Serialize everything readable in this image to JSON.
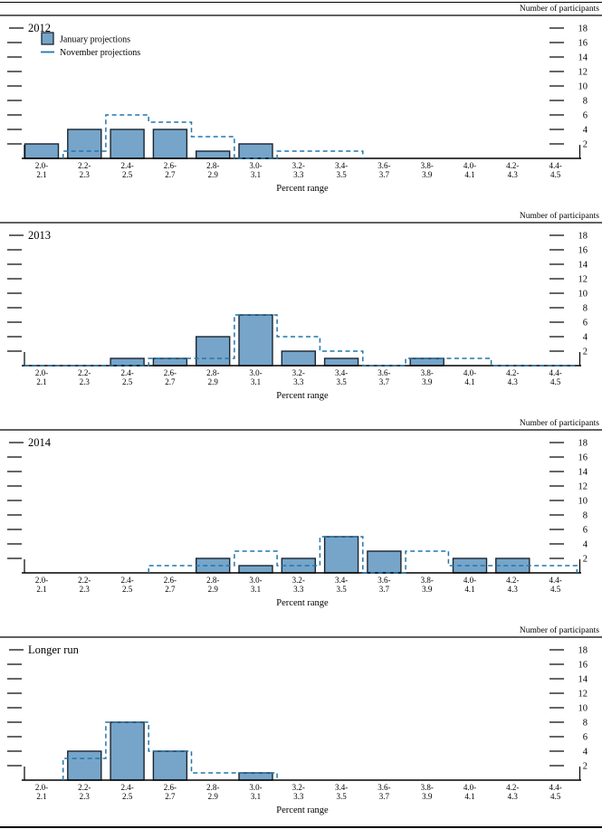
{
  "figure": {
    "y_axis_label": "Number of participants",
    "x_axis_label": "Percent range",
    "y_ticks": [
      2,
      4,
      6,
      8,
      10,
      12,
      14,
      16,
      18
    ],
    "legend": [
      {
        "label": "January projections",
        "style": "bar"
      },
      {
        "label": "November projections",
        "style": "dashed-line"
      }
    ],
    "colors": {
      "bar_fill": "#76a5c9",
      "bar_border": "#1b2430",
      "november_line": "#2176ad",
      "axis": "#000000"
    }
  },
  "chart_data": [
    {
      "type": "bar",
      "title": "2012",
      "show_legend": true,
      "categories": [
        "2.0-2.1",
        "2.2-2.3",
        "2.4-2.5",
        "2.6-2.7",
        "2.8-2.9",
        "3.0-3.1",
        "3.2-3.3",
        "3.4-3.5",
        "3.6-3.7",
        "3.8-3.9",
        "4.0-4.1",
        "4.2-4.3",
        "4.4-4.5"
      ],
      "xlabel": "Percent range",
      "ylabel": "Number of participants",
      "ylim": [
        0,
        19
      ],
      "series": [
        {
          "name": "January projections",
          "style": "bar",
          "values": [
            2,
            4,
            4,
            4,
            1,
            2,
            0,
            0,
            0,
            0,
            0,
            0,
            0
          ]
        },
        {
          "name": "November projections",
          "style": "dashed-step",
          "values": [
            null,
            1,
            6,
            5,
            3,
            0,
            1,
            1,
            null,
            null,
            null,
            null,
            null
          ]
        }
      ]
    },
    {
      "type": "bar",
      "title": "2013",
      "show_legend": false,
      "categories": [
        "2.0-2.1",
        "2.2-2.3",
        "2.4-2.5",
        "2.6-2.7",
        "2.8-2.9",
        "3.0-3.1",
        "3.2-3.3",
        "3.4-3.5",
        "3.6-3.7",
        "3.8-3.9",
        "4.0-4.1",
        "4.2-4.3",
        "4.4-4.5"
      ],
      "xlabel": "Percent range",
      "ylabel": "Number of participants",
      "ylim": [
        0,
        19
      ],
      "series": [
        {
          "name": "January projections",
          "style": "bar",
          "values": [
            0,
            0,
            1,
            1,
            4,
            7,
            2,
            1,
            0,
            1,
            0,
            0,
            0
          ]
        },
        {
          "name": "November projections",
          "style": "dashed-step",
          "values": [
            0,
            0,
            0,
            1,
            1,
            7,
            4,
            2,
            0,
            1,
            1,
            0,
            0
          ]
        }
      ]
    },
    {
      "type": "bar",
      "title": "2014",
      "show_legend": false,
      "categories": [
        "2.0-2.1",
        "2.2-2.3",
        "2.4-2.5",
        "2.6-2.7",
        "2.8-2.9",
        "3.0-3.1",
        "3.2-3.3",
        "3.4-3.5",
        "3.6-3.7",
        "3.8-3.9",
        "4.0-4.1",
        "4.2-4.3",
        "4.4-4.5"
      ],
      "xlabel": "Percent range",
      "ylabel": "Number of participants",
      "ylim": [
        0,
        19
      ],
      "series": [
        {
          "name": "January projections",
          "style": "bar",
          "values": [
            0,
            0,
            0,
            0,
            2,
            1,
            2,
            5,
            3,
            0,
            2,
            2,
            0
          ]
        },
        {
          "name": "November projections",
          "style": "dashed-step",
          "values": [
            null,
            null,
            null,
            1,
            1,
            3,
            1,
            5,
            0,
            3,
            1,
            1,
            1
          ]
        }
      ]
    },
    {
      "type": "bar",
      "title": "Longer run",
      "show_legend": false,
      "categories": [
        "2.0-2.1",
        "2.2-2.3",
        "2.4-2.5",
        "2.6-2.7",
        "2.8-2.9",
        "3.0-3.1",
        "3.2-3.3",
        "3.4-3.5",
        "3.6-3.7",
        "3.8-3.9",
        "4.0-4.1",
        "4.2-4.3",
        "4.4-4.5"
      ],
      "xlabel": "Percent range",
      "ylabel": "Number of participants",
      "ylim": [
        0,
        19
      ],
      "series": [
        {
          "name": "January projections",
          "style": "bar",
          "values": [
            0,
            4,
            8,
            4,
            0,
            1,
            0,
            0,
            0,
            0,
            0,
            0,
            0
          ]
        },
        {
          "name": "November projections",
          "style": "dashed-step",
          "values": [
            null,
            3,
            8,
            4,
            1,
            1,
            null,
            null,
            null,
            null,
            null,
            null,
            null
          ]
        }
      ]
    }
  ]
}
